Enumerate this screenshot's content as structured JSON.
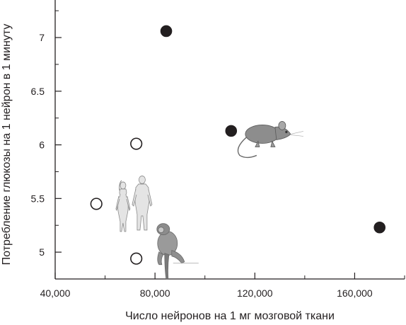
{
  "chart_data": {
    "type": "scatter",
    "title": "",
    "xlabel": "Число нейронов на 1 мг мозговой ткани",
    "ylabel": "Потребление глюкозы на 1 нейрон в 1 минуту",
    "xlim": [
      40000,
      180000
    ],
    "ylim": [
      4.75,
      7.35
    ],
    "x_major_ticks": [
      40000,
      80000,
      120000,
      160000
    ],
    "x_tick_labels": [
      "40,000",
      "80,000",
      "120,000",
      "160,000"
    ],
    "x_minor_ticks": [
      60000,
      100000,
      140000,
      180000
    ],
    "y_major_ticks": [
      5,
      5.5,
      6,
      6.5,
      7
    ],
    "y_tick_labels": [
      "5",
      "5.5",
      "6",
      "6.5",
      "7"
    ],
    "y_minor_ticks": [
      5.25,
      5.75,
      6.25,
      6.75,
      7.25
    ],
    "grid": false,
    "legend": "none",
    "series": [
      {
        "marker": "filled-circle",
        "color": "#231f20",
        "points": [
          {
            "x": 84500,
            "y": 7.06
          },
          {
            "x": 110500,
            "y": 6.13
          },
          {
            "x": 170000,
            "y": 5.23
          }
        ]
      },
      {
        "marker": "open-circle",
        "color": "#231f20",
        "points": [
          {
            "x": 56500,
            "y": 5.45
          },
          {
            "x": 72500,
            "y": 6.01
          },
          {
            "x": 72500,
            "y": 4.94
          }
        ]
      }
    ],
    "illustrations": [
      {
        "icon": "human-couple-icon",
        "x": 72000,
        "y": 5.45
      },
      {
        "icon": "monkey-icon",
        "x": 85000,
        "y": 4.95
      },
      {
        "icon": "rat-icon",
        "x": 123000,
        "y": 6.1
      }
    ]
  }
}
